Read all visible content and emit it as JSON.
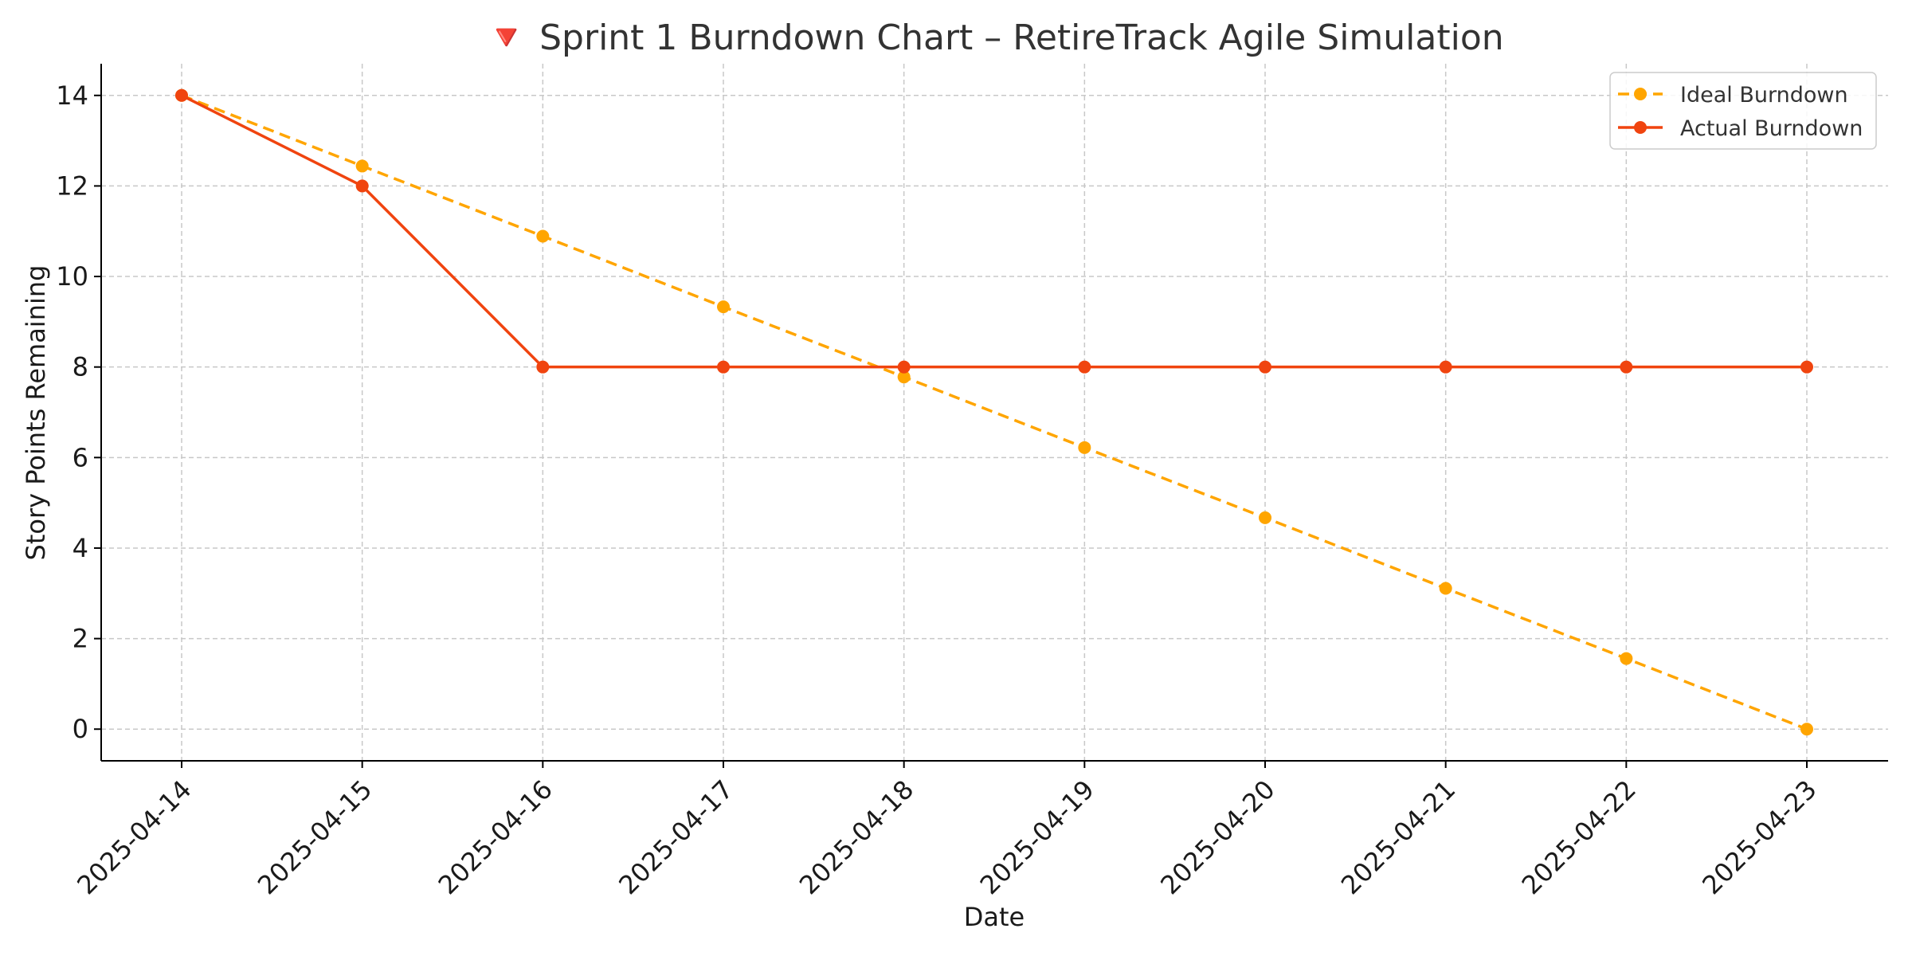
{
  "chart_data": {
    "type": "line",
    "title": "🔻 Sprint 1 Burndown Chart – RetireTrack Agile Simulation",
    "xlabel": "Date",
    "ylabel": "Story Points Remaining",
    "categories": [
      "2025-04-14",
      "2025-04-15",
      "2025-04-16",
      "2025-04-17",
      "2025-04-18",
      "2025-04-19",
      "2025-04-20",
      "2025-04-21",
      "2025-04-22",
      "2025-04-23"
    ],
    "y_ticks": [
      0,
      2,
      4,
      6,
      8,
      10,
      12,
      14
    ],
    "ylim": [
      -0.7,
      14.7
    ],
    "grid": true,
    "legend_position": "top-right",
    "series": [
      {
        "name": "Ideal Burndown",
        "color": "#FFA500",
        "line_style": "dashed",
        "marker": "circle",
        "values": [
          14,
          12.44,
          10.89,
          9.33,
          7.78,
          6.22,
          4.67,
          3.11,
          1.56,
          0
        ]
      },
      {
        "name": "Actual Burndown",
        "color": "#F0440F",
        "line_style": "solid",
        "marker": "circle",
        "values": [
          14,
          12,
          8,
          8,
          8,
          8,
          8,
          8,
          8,
          8
        ]
      }
    ]
  }
}
